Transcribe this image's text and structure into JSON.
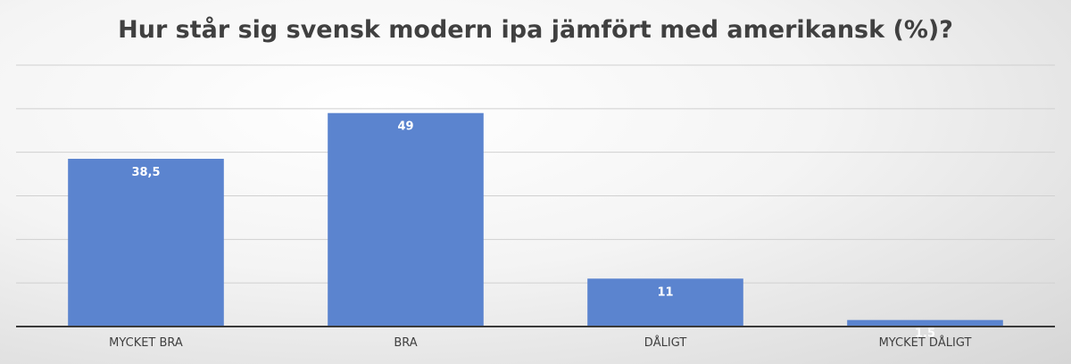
{
  "chart_data": {
    "type": "bar",
    "title": "Hur står sig svensk modern ipa jämfört med amerikansk (%)?",
    "categories": [
      "MYCKET BRA",
      "BRA",
      "DÅLIGT",
      "MYCKET DÅLIGT"
    ],
    "values": [
      38.5,
      49,
      11,
      1.5
    ],
    "data_labels": [
      "38,5",
      "49",
      "11",
      "1,5"
    ],
    "xlabel": "",
    "ylabel": "",
    "ylim": [
      0,
      60
    ],
    "grid": true,
    "bar_color": "#5b84cf"
  }
}
